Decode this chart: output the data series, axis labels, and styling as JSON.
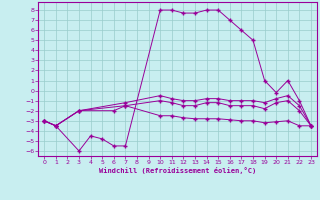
{
  "xlabel": "Windchill (Refroidissement éolien,°C)",
  "bg_color": "#c8eef0",
  "line_color": "#990099",
  "grid_color": "#99cccc",
  "x_ticks": [
    0,
    1,
    2,
    3,
    4,
    5,
    6,
    7,
    8,
    9,
    10,
    11,
    12,
    13,
    14,
    15,
    16,
    17,
    18,
    19,
    20,
    21,
    22,
    23
  ],
  "y_ticks": [
    8,
    7,
    6,
    5,
    4,
    3,
    2,
    1,
    0,
    -1,
    -2,
    -3,
    -4,
    -5,
    -6
  ],
  "ylim": [
    -6.5,
    8.8
  ],
  "xlim": [
    -0.5,
    23.5
  ],
  "line1_x": [
    0,
    1,
    3,
    4,
    5,
    6,
    7,
    10,
    11,
    12,
    13,
    14,
    15,
    16,
    17,
    18,
    19,
    20,
    21,
    22,
    23
  ],
  "line1_y": [
    -3,
    -3.5,
    -6,
    -4.5,
    -4.8,
    -5.5,
    -5.5,
    8,
    8,
    7.7,
    7.7,
    8,
    8,
    7,
    6,
    5,
    1,
    -0.2,
    1.0,
    -1,
    -3.5
  ],
  "line2_x": [
    0,
    1,
    3,
    6,
    7,
    10,
    11,
    12,
    13,
    14,
    15,
    16,
    17,
    18,
    19,
    20,
    21,
    22,
    23
  ],
  "line2_y": [
    -3,
    -3.5,
    -2,
    -2,
    -1.5,
    -2.5,
    -2.5,
    -2.7,
    -2.8,
    -2.8,
    -2.8,
    -2.9,
    -3,
    -3,
    -3.2,
    -3.1,
    -3,
    -3.5,
    -3.5
  ],
  "line3_x": [
    0,
    1,
    3,
    7,
    10,
    11,
    12,
    13,
    14,
    15,
    16,
    17,
    18,
    19,
    20,
    21,
    22,
    23
  ],
  "line3_y": [
    -3,
    -3.5,
    -2,
    -1.5,
    -1,
    -1.2,
    -1.5,
    -1.5,
    -1.2,
    -1.2,
    -1.5,
    -1.5,
    -1.5,
    -1.8,
    -1.2,
    -1,
    -2,
    -3.5
  ],
  "line4_x": [
    0,
    1,
    3,
    7,
    10,
    11,
    12,
    13,
    14,
    15,
    16,
    17,
    18,
    19,
    20,
    21,
    22,
    23
  ],
  "line4_y": [
    -3,
    -3.5,
    -2,
    -1.2,
    -0.5,
    -0.8,
    -1,
    -1,
    -0.8,
    -0.8,
    -1,
    -1,
    -1,
    -1.2,
    -0.8,
    -0.5,
    -1.5,
    -3.5
  ]
}
